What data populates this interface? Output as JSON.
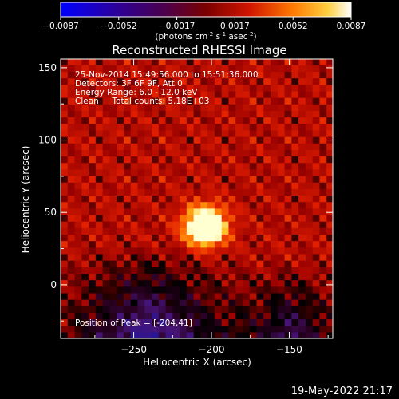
{
  "chart_data": {
    "type": "heatmap",
    "title": "Reconstructed RHESSI Image",
    "xlabel": "Heliocentric X (arcsec)",
    "ylabel": "Heliocentric Y (arcsec)",
    "xlim": [
      -297,
      -122
    ],
    "ylim": [
      -37,
      156
    ],
    "x_ticks": [
      -250,
      -200,
      -150
    ],
    "y_ticks": [
      0,
      50,
      100,
      150
    ],
    "colorbar": {
      "range": [
        -0.0087,
        0.0087
      ],
      "ticks": [
        "-0.0087",
        "-0.0052",
        "-0.0017",
        "0.0017",
        "0.0052",
        "0.0087"
      ],
      "unit_parts": [
        "(photons cm",
        "-2",
        " s",
        "-1",
        " asec",
        "-2",
        ")"
      ]
    },
    "info_lines": [
      "25-Nov-2014 15:49:56.000 to 15:51:36.000",
      "Detectors: 3F 6F 9F, Att 0",
      "Energy Range: 6.0 - 12.0 keV",
      "Clean     Total counts: 5.18E+03"
    ],
    "peak_label": "Position of Peak = [-204,41]",
    "peak_position": [
      -204,
      41
    ],
    "grid": false
  },
  "footer": {
    "timestamp": "19-May-2022 21:17"
  },
  "colors": {
    "frame": "#ffffff",
    "background": "#000000"
  }
}
